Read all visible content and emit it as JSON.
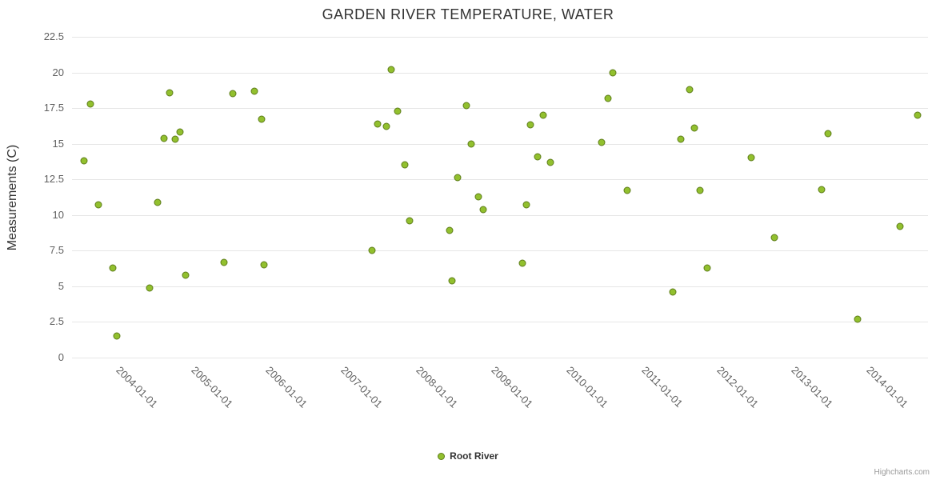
{
  "title": "GARDEN RIVER TEMPERATURE, WATER",
  "y_axis": {
    "title": "Measurements (C)"
  },
  "legend": {
    "label": "Root River"
  },
  "credit": "Highcharts.com",
  "colors": {
    "marker_fill": "#92C02E",
    "marker_stroke": "#5E7D1B",
    "grid": "#e6e6e6",
    "title_text": "#333333",
    "tick_text": "#606060",
    "credit_text": "#999999"
  },
  "chart_data": {
    "type": "scatter",
    "title": "GARDEN RIVER TEMPERATURE, WATER",
    "xlabel": "",
    "ylabel": "Measurements (C)",
    "ylim": [
      0,
      22.5
    ],
    "y_ticks": [
      0,
      2.5,
      5,
      7.5,
      10,
      12.5,
      15,
      17.5,
      20,
      22.5
    ],
    "xlim_years": [
      2003.3,
      2014.7
    ],
    "x_ticks": [
      {
        "year": 2004,
        "label": "2004-01-01"
      },
      {
        "year": 2005,
        "label": "2005-01-01"
      },
      {
        "year": 2006,
        "label": "2006-01-01"
      },
      {
        "year": 2007,
        "label": "2007-01-01"
      },
      {
        "year": 2008,
        "label": "2008-01-01"
      },
      {
        "year": 2009,
        "label": "2009-01-01"
      },
      {
        "year": 2010,
        "label": "2010-01-01"
      },
      {
        "year": 2011,
        "label": "2011-01-01"
      },
      {
        "year": 2012,
        "label": "2012-01-01"
      },
      {
        "year": 2013,
        "label": "2013-01-01"
      },
      {
        "year": 2014,
        "label": "2014-01-01"
      }
    ],
    "grid": "horizontal-only",
    "legend_position": "bottom-center",
    "series": [
      {
        "name": "Root River",
        "points": [
          {
            "x": 2003.46,
            "y": 13.8
          },
          {
            "x": 2003.55,
            "y": 17.8
          },
          {
            "x": 2003.65,
            "y": 10.7
          },
          {
            "x": 2003.84,
            "y": 6.3
          },
          {
            "x": 2003.9,
            "y": 1.5
          },
          {
            "x": 2004.33,
            "y": 4.9
          },
          {
            "x": 2004.44,
            "y": 10.9
          },
          {
            "x": 2004.53,
            "y": 15.4
          },
          {
            "x": 2004.6,
            "y": 18.6
          },
          {
            "x": 2004.67,
            "y": 15.3
          },
          {
            "x": 2004.74,
            "y": 15.8
          },
          {
            "x": 2004.81,
            "y": 5.8
          },
          {
            "x": 2005.32,
            "y": 6.7
          },
          {
            "x": 2005.44,
            "y": 18.5
          },
          {
            "x": 2005.73,
            "y": 18.7
          },
          {
            "x": 2005.83,
            "y": 16.7
          },
          {
            "x": 2005.86,
            "y": 6.5
          },
          {
            "x": 2007.29,
            "y": 7.5
          },
          {
            "x": 2007.37,
            "y": 16.4
          },
          {
            "x": 2007.49,
            "y": 16.2
          },
          {
            "x": 2007.55,
            "y": 20.2
          },
          {
            "x": 2007.64,
            "y": 17.3
          },
          {
            "x": 2007.73,
            "y": 13.5
          },
          {
            "x": 2007.8,
            "y": 9.6
          },
          {
            "x": 2008.33,
            "y": 8.9
          },
          {
            "x": 2008.36,
            "y": 5.4
          },
          {
            "x": 2008.44,
            "y": 12.6
          },
          {
            "x": 2008.55,
            "y": 17.7
          },
          {
            "x": 2008.62,
            "y": 15.0
          },
          {
            "x": 2008.71,
            "y": 11.3
          },
          {
            "x": 2008.78,
            "y": 10.4
          },
          {
            "x": 2009.3,
            "y": 6.6
          },
          {
            "x": 2009.35,
            "y": 10.7
          },
          {
            "x": 2009.4,
            "y": 16.3
          },
          {
            "x": 2009.5,
            "y": 14.1
          },
          {
            "x": 2009.57,
            "y": 17.0
          },
          {
            "x": 2009.67,
            "y": 13.7
          },
          {
            "x": 2010.35,
            "y": 15.1
          },
          {
            "x": 2010.44,
            "y": 18.2
          },
          {
            "x": 2010.5,
            "y": 20.0
          },
          {
            "x": 2010.69,
            "y": 11.7
          },
          {
            "x": 2011.3,
            "y": 4.6
          },
          {
            "x": 2011.41,
            "y": 15.3
          },
          {
            "x": 2011.52,
            "y": 18.8
          },
          {
            "x": 2011.59,
            "y": 16.1
          },
          {
            "x": 2011.66,
            "y": 11.7
          },
          {
            "x": 2011.76,
            "y": 6.3
          },
          {
            "x": 2012.35,
            "y": 14.0
          },
          {
            "x": 2012.65,
            "y": 8.4
          },
          {
            "x": 2013.28,
            "y": 11.8
          },
          {
            "x": 2013.37,
            "y": 15.7
          },
          {
            "x": 2013.76,
            "y": 2.7
          },
          {
            "x": 2014.33,
            "y": 9.2
          },
          {
            "x": 2014.56,
            "y": 17.0
          }
        ]
      }
    ]
  }
}
